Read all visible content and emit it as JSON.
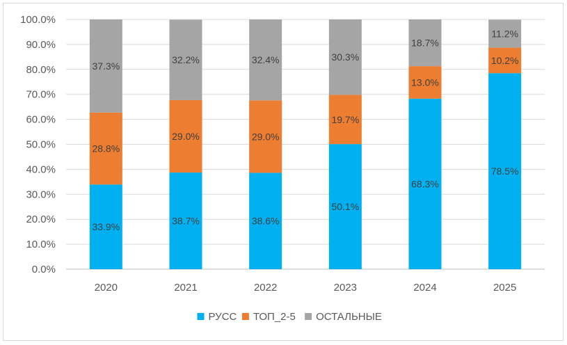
{
  "chart_data": {
    "type": "bar",
    "stacked": true,
    "categories": [
      "2020",
      "2021",
      "2022",
      "2023",
      "2024",
      "2025"
    ],
    "series": [
      {
        "name": "РУСС",
        "color": "#00b0f0",
        "values": [
          33.9,
          38.7,
          38.6,
          50.1,
          68.3,
          78.5
        ],
        "labels": [
          "33.9%",
          "38.7%",
          "38.6%",
          "50.1%",
          "68.3%",
          "78.5%"
        ]
      },
      {
        "name": "ТОП_2-5",
        "color": "#ed7d31",
        "values": [
          28.8,
          29.0,
          29.0,
          19.7,
          13.0,
          10.2
        ],
        "labels": [
          "28.8%",
          "29.0%",
          "29.0%",
          "19.7%",
          "13.0%",
          "10.2%"
        ]
      },
      {
        "name": "ОСТАЛЬНЫЕ",
        "color": "#a5a5a5",
        "values": [
          37.3,
          32.2,
          32.4,
          30.3,
          18.7,
          11.2
        ],
        "labels": [
          "37.3%",
          "32.2%",
          "32.4%",
          "30.3%",
          "18.7%",
          "11.2%"
        ]
      }
    ],
    "yticks": [
      "0.0%",
      "10.0%",
      "20.0%",
      "30.0%",
      "40.0%",
      "50.0%",
      "60.0%",
      "70.0%",
      "80.0%",
      "90.0%",
      "100.0%"
    ],
    "ylim": [
      0,
      100
    ],
    "grid": true,
    "legend": "bottom"
  }
}
